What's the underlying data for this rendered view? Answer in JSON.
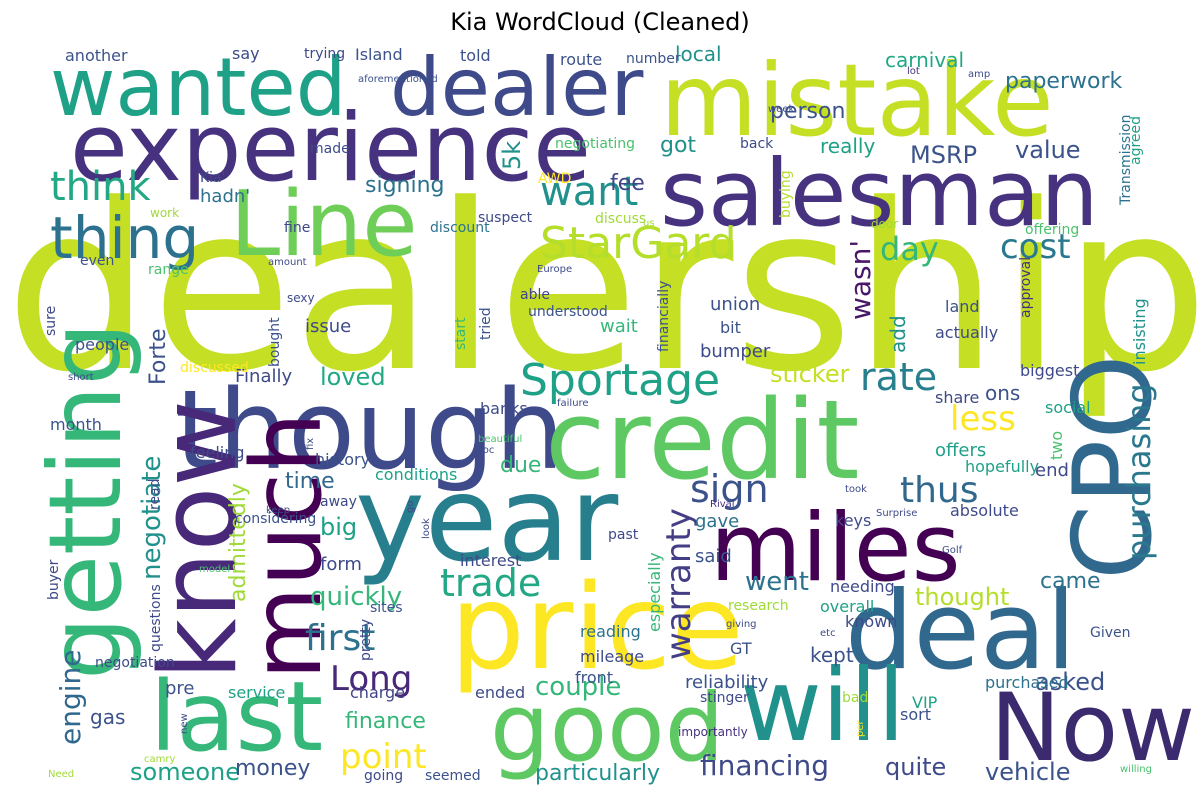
{
  "title": "Kia WordCloud (Cleaned)",
  "palette": [
    "#440154",
    "#46327e",
    "#365c8d",
    "#277f8e",
    "#1fa187",
    "#4ac16d",
    "#a0da39",
    "#cbe11e",
    "#fde725"
  ],
  "words": [
    {
      "text": "dealership",
      "c": "#c5df25"
    },
    {
      "text": "year",
      "c": "#277f8e"
    },
    {
      "text": "price",
      "c": "#fde725"
    },
    {
      "text": "though",
      "c": "#3e4a89"
    },
    {
      "text": "credit",
      "c": "#5ec962"
    },
    {
      "text": "mistake",
      "c": "#c5df25"
    },
    {
      "text": "experience",
      "c": "#46327e"
    },
    {
      "text": "salesman",
      "c": "#46327e"
    },
    {
      "text": "deal",
      "c": "#31688e"
    },
    {
      "text": "will",
      "c": "#21918c"
    },
    {
      "text": "Now",
      "c": "#3b2a6e"
    },
    {
      "text": "miles",
      "c": "#440154"
    },
    {
      "text": "much",
      "c": "#440154"
    },
    {
      "text": "good",
      "c": "#5ec962"
    },
    {
      "text": "last",
      "c": "#35b779"
    },
    {
      "text": "know",
      "c": "#482878"
    },
    {
      "text": "getting",
      "c": "#35b779"
    },
    {
      "text": "wanted",
      "c": "#1fa187"
    },
    {
      "text": "dealer",
      "c": "#3e4a89"
    },
    {
      "text": "Line",
      "c": "#6ece58"
    },
    {
      "text": "CPO",
      "c": "#31688e"
    },
    {
      "text": "Sportage",
      "c": "#1fa187"
    },
    {
      "text": "StarGard",
      "c": "#b5de2b"
    },
    {
      "text": "thing",
      "c": "#2c728e"
    },
    {
      "text": "think",
      "c": "#22a884"
    },
    {
      "text": "trade",
      "c": "#22a884"
    },
    {
      "text": "purchasing",
      "c": "#2a788e"
    },
    {
      "text": "rate",
      "c": "#277f8e"
    },
    {
      "text": "first",
      "c": "#2c728e"
    },
    {
      "text": "point",
      "c": "#fde725"
    },
    {
      "text": "Long",
      "c": "#482878"
    },
    {
      "text": "want",
      "c": "#21918c"
    },
    {
      "text": "sign",
      "c": "#3b528b"
    },
    {
      "text": "thus",
      "c": "#31688e"
    },
    {
      "text": "cost",
      "c": "#2a788e"
    },
    {
      "text": "day",
      "c": "#35b779"
    },
    {
      "text": "less",
      "c": "#fde725"
    },
    {
      "text": "negotiate",
      "c": "#21918c"
    },
    {
      "text": "warranty",
      "c": "#433e85"
    },
    {
      "text": "engine",
      "c": "#31688e"
    },
    {
      "text": "financing",
      "c": "#3e4a89"
    },
    {
      "text": "wasn'",
      "c": "#481769"
    },
    {
      "text": "asked",
      "c": "#3b528b"
    },
    {
      "text": "went",
      "c": "#2c728e"
    },
    {
      "text": "couple",
      "c": "#35b779"
    },
    {
      "text": "quickly",
      "c": "#35b779"
    },
    {
      "text": "vehicle",
      "c": "#3b528b"
    },
    {
      "text": "quite",
      "c": "#3e4a89"
    },
    {
      "text": "someone",
      "c": "#1fa187"
    },
    {
      "text": "particularly",
      "c": "#21918c"
    },
    {
      "text": "thought",
      "c": "#b5de2b"
    },
    {
      "text": "sticker",
      "c": "#c5df25"
    },
    {
      "text": "loved",
      "c": "#22a884"
    },
    {
      "text": "big",
      "c": "#1fa187"
    },
    {
      "text": "signing",
      "c": "#2c728e"
    },
    {
      "text": "MSRP",
      "c": "#3b528b"
    },
    {
      "text": "value",
      "c": "#3b528b"
    },
    {
      "text": "person",
      "c": "#3b528b"
    },
    {
      "text": "paperwork",
      "c": "#2c728e"
    },
    {
      "text": "carnival",
      "c": "#22a884"
    },
    {
      "text": "time",
      "c": "#31688e"
    },
    {
      "text": "money",
      "c": "#3b528b"
    },
    {
      "text": "finance",
      "c": "#35b779"
    },
    {
      "text": "due",
      "c": "#35b779"
    },
    {
      "text": "got",
      "c": "#21918c"
    },
    {
      "text": "fee",
      "c": "#414487"
    },
    {
      "text": "5k",
      "c": "#21918c"
    },
    {
      "text": "Forte",
      "c": "#3b528b"
    },
    {
      "text": "came",
      "c": "#2c728e"
    },
    {
      "text": "admittedly",
      "c": "#a0da39"
    },
    {
      "text": "kept",
      "c": "#3b528b"
    },
    {
      "text": "form",
      "c": "#3e4a89"
    },
    {
      "text": "gas",
      "c": "#3b528b"
    },
    {
      "text": "said",
      "c": "#3b528b"
    },
    {
      "text": "gave",
      "c": "#2c728e"
    },
    {
      "text": "ons",
      "c": "#3b528b"
    },
    {
      "text": "Finally",
      "c": "#3e4a89"
    },
    {
      "text": "really",
      "c": "#1fa187"
    },
    {
      "text": "local",
      "c": "#21918c"
    },
    {
      "text": "add",
      "c": "#21918c"
    },
    {
      "text": "hadn'",
      "c": "#2c728e"
    },
    {
      "text": "union",
      "c": "#3b528b"
    },
    {
      "text": "issue",
      "c": "#3e4a89"
    },
    {
      "text": "bumper",
      "c": "#3e4a89"
    },
    {
      "text": "wait",
      "c": "#35b779"
    },
    {
      "text": "end",
      "c": "#3e4a89"
    },
    {
      "text": "offers",
      "c": "#1fa187"
    },
    {
      "text": "reliability",
      "c": "#3b528b"
    },
    {
      "text": "pre",
      "c": "#3b528b"
    },
    {
      "text": "service",
      "c": "#1fa187"
    },
    {
      "text": "charge",
      "c": "#414487"
    },
    {
      "text": "ended",
      "c": "#3e4a89"
    },
    {
      "text": "mileage",
      "c": "#3e4a89"
    },
    {
      "text": "reading",
      "c": "#2c728e"
    },
    {
      "text": "front",
      "c": "#3b528b"
    },
    {
      "text": "overall",
      "c": "#1fa187"
    },
    {
      "text": "needing",
      "c": "#3e4a89"
    },
    {
      "text": "known",
      "c": "#3e4a89"
    },
    {
      "text": "purchased",
      "c": "#2c728e"
    },
    {
      "text": "sort",
      "c": "#3b528b"
    },
    {
      "text": "VIP",
      "c": "#1fa187"
    },
    {
      "text": "GT",
      "c": "#3b528b"
    },
    {
      "text": "interest",
      "c": "#3e4a89"
    },
    {
      "text": "especially",
      "c": "#35b779"
    },
    {
      "text": "keys",
      "c": "#3e4a89"
    },
    {
      "text": "absolute",
      "c": "#3e4a89"
    },
    {
      "text": "hopefully",
      "c": "#1fa187"
    },
    {
      "text": "conditions",
      "c": "#1fa187"
    },
    {
      "text": "history",
      "c": "#3b528b"
    },
    {
      "text": "feeling",
      "c": "#3e4a89"
    },
    {
      "text": "month",
      "c": "#3b528b"
    },
    {
      "text": "people",
      "c": "#3b528b"
    },
    {
      "text": "banks",
      "c": "#3e4a89"
    },
    {
      "text": "social",
      "c": "#1fa187"
    },
    {
      "text": "share",
      "c": "#3e4a89"
    },
    {
      "text": "biggest",
      "c": "#3e4a89"
    },
    {
      "text": "two",
      "c": "#4ac16d"
    },
    {
      "text": "insisting",
      "c": "#21918c"
    },
    {
      "text": "approval",
      "c": "#46327e"
    },
    {
      "text": "actually",
      "c": "#3e4a89"
    },
    {
      "text": "land",
      "c": "#3b528b"
    },
    {
      "text": "bit",
      "c": "#3b528b"
    },
    {
      "text": "financially",
      "c": "#3b528b"
    },
    {
      "text": "understood",
      "c": "#3b528b"
    },
    {
      "text": "able",
      "c": "#414487"
    },
    {
      "text": "tried",
      "c": "#3b528b"
    },
    {
      "text": "start",
      "c": "#35b779"
    },
    {
      "text": "offering",
      "c": "#4ac16d"
    },
    {
      "text": "Transmission",
      "c": "#2c728e"
    },
    {
      "text": "agreed",
      "c": "#1fa187"
    },
    {
      "text": "buying",
      "c": "#b5de2b"
    },
    {
      "text": "discuss",
      "c": "#a0da39"
    },
    {
      "text": "suspect",
      "c": "#3e4a89"
    },
    {
      "text": "AWD",
      "c": "#fde725"
    },
    {
      "text": "discount",
      "c": "#2c728e"
    },
    {
      "text": "Kia'",
      "c": "#3e4a89"
    },
    {
      "text": "negotiating",
      "c": "#4ac16d"
    },
    {
      "text": "made",
      "c": "#3e4a89"
    },
    {
      "text": "back",
      "c": "#3e4a89"
    },
    {
      "text": "route",
      "c": "#3b528b"
    },
    {
      "text": "number",
      "c": "#3b528b"
    },
    {
      "text": "told",
      "c": "#3b528b"
    },
    {
      "text": "Island",
      "c": "#3b528b"
    },
    {
      "text": "trying",
      "c": "#3e4a89"
    },
    {
      "text": "say",
      "c": "#3e4a89"
    },
    {
      "text": "another",
      "c": "#3b528b"
    },
    {
      "text": "aforementioned",
      "c": "#3b528b"
    },
    {
      "text": "amp",
      "c": "#3e4a89"
    },
    {
      "text": "lot",
      "c": "#46327e"
    },
    {
      "text": "week",
      "c": "#3e4a89"
    },
    {
      "text": "work",
      "c": "#a0da39"
    },
    {
      "text": "fine",
      "c": "#3e4a89"
    },
    {
      "text": "even",
      "c": "#3b528b"
    },
    {
      "text": "range",
      "c": "#4ac16d"
    },
    {
      "text": "sure",
      "c": "#3e4a89"
    },
    {
      "text": "bought",
      "c": "#3b528b"
    },
    {
      "text": "discussed",
      "c": "#fde725"
    },
    {
      "text": "read",
      "c": "#3e4a89"
    },
    {
      "text": "considering",
      "c": "#3b528b"
    },
    {
      "text": "away",
      "c": "#3e4a89"
    },
    {
      "text": "buyer",
      "c": "#3e4a89"
    },
    {
      "text": "questions",
      "c": "#3e4a89"
    },
    {
      "text": "negotiation",
      "c": "#3e4a89"
    },
    {
      "text": "sites",
      "c": "#3b528b"
    },
    {
      "text": "pretty",
      "c": "#3e4a89"
    },
    {
      "text": "research",
      "c": "#a0da39"
    },
    {
      "text": "past",
      "c": "#3e4a89"
    },
    {
      "text": "Given",
      "c": "#3b528b"
    },
    {
      "text": "etc",
      "c": "#3e4a89"
    },
    {
      "text": "giving",
      "c": "#3e4a89"
    },
    {
      "text": "bad",
      "c": "#a0da39"
    },
    {
      "text": "per",
      "c": "#fde725"
    },
    {
      "text": "importantly",
      "c": "#46327e"
    },
    {
      "text": "stinger",
      "c": "#3e4a89"
    },
    {
      "text": "going",
      "c": "#3e4a89"
    },
    {
      "text": "seemed",
      "c": "#3b528b"
    },
    {
      "text": "short",
      "c": "#3e4a89"
    },
    {
      "text": "beautiful",
      "c": "#4ac16d"
    },
    {
      "text": "failure",
      "c": "#3e4a89"
    },
    {
      "text": "Doc",
      "c": "#3e4a89"
    },
    {
      "text": "fix",
      "c": "#3e4a89"
    },
    {
      "text": "Europe",
      "c": "#3e4a89"
    },
    {
      "text": "sexy",
      "c": "#3e4a89"
    },
    {
      "text": "amount",
      "c": "#3e4a89"
    },
    {
      "text": "us",
      "c": "#a0da39"
    },
    {
      "text": "door",
      "c": "#a0da39"
    },
    {
      "text": "go",
      "c": "#3e4a89"
    },
    {
      "text": "look",
      "c": "#3e4a89"
    },
    {
      "text": "keep",
      "c": "#3e4a89"
    },
    {
      "text": "model",
      "c": "#4ac16d"
    },
    {
      "text": "new",
      "c": "#3e4a89"
    },
    {
      "text": "camry",
      "c": "#a0da39"
    },
    {
      "text": "Need",
      "c": "#a0da39"
    },
    {
      "text": "willing",
      "c": "#4ac16d"
    },
    {
      "text": "Golf",
      "c": "#3e4a89"
    },
    {
      "text": "Rival",
      "c": "#46327e"
    },
    {
      "text": "took",
      "c": "#3e4a89"
    },
    {
      "text": "Surprise",
      "c": "#3e4a89"
    },
    {
      "text": "worried",
      "c": "#a0da39"
    }
  ]
}
